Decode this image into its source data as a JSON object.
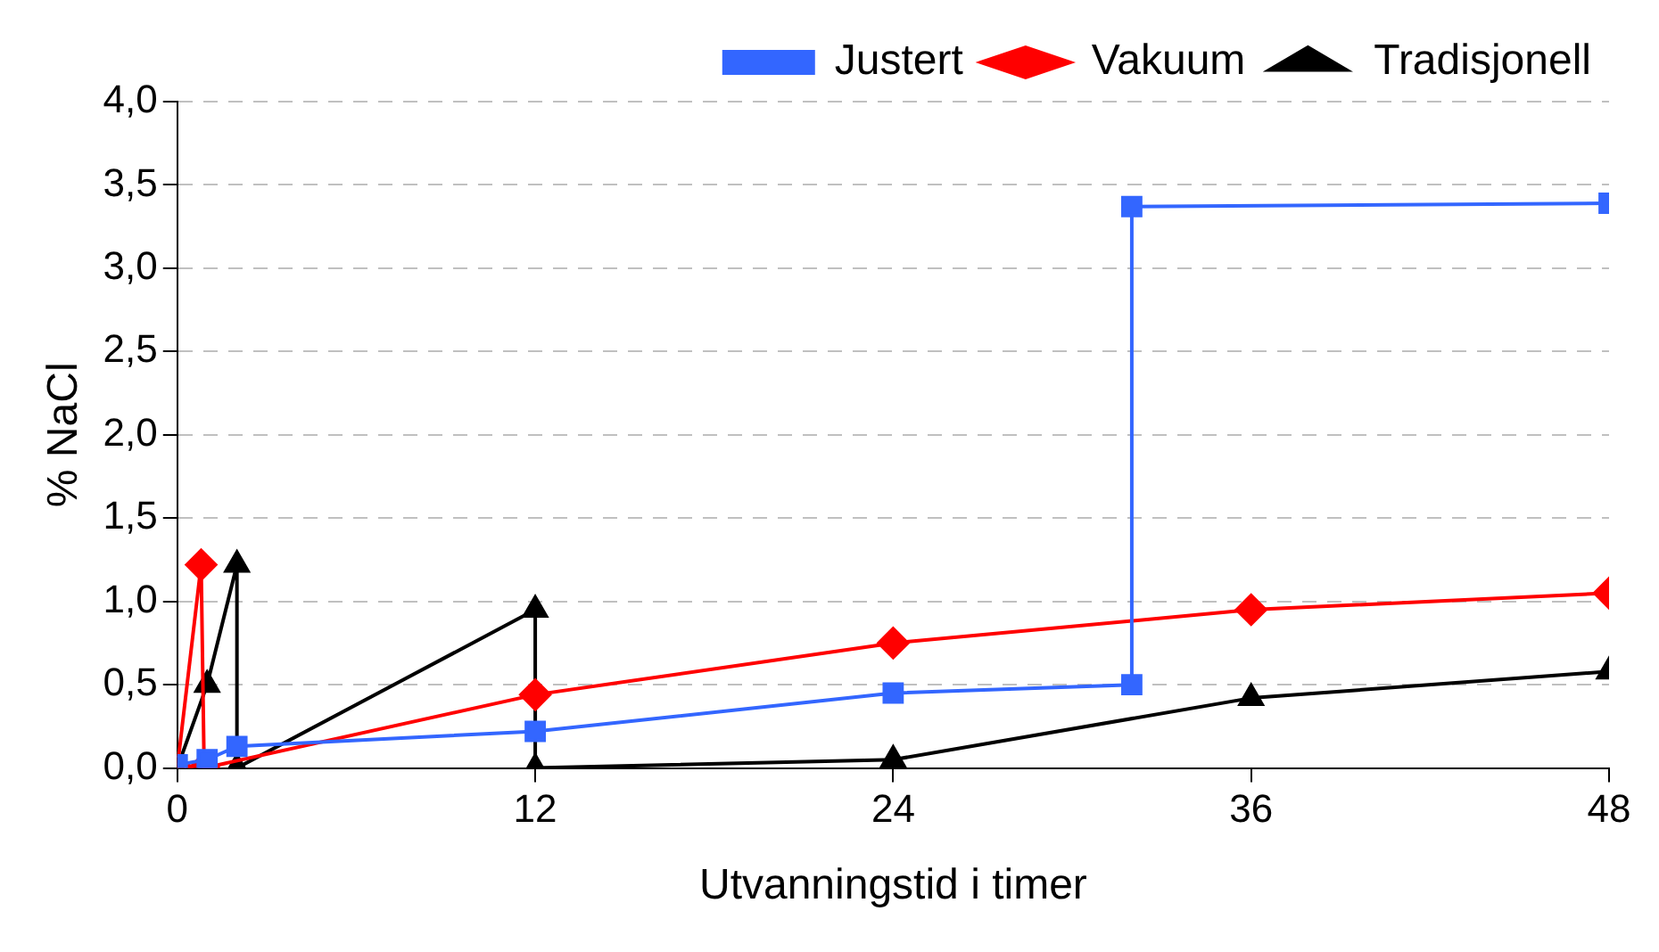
{
  "chart_data": {
    "type": "line",
    "xlabel": "Utvanningstid i timer",
    "ylabel": "% NaCl",
    "xlim": [
      0,
      48
    ],
    "xticks": [
      0,
      12,
      24,
      36,
      48
    ],
    "ylim": [
      0,
      4
    ],
    "yticks": [
      {
        "value": 0,
        "label": "0,0"
      },
      {
        "value": 0.5,
        "label": "0,5"
      },
      {
        "value": 1,
        "label": "1,0"
      },
      {
        "value": 1.5,
        "label": "1,5"
      },
      {
        "value": 2,
        "label": "2,0"
      },
      {
        "value": 2.5,
        "label": "2,5"
      },
      {
        "value": 3,
        "label": "3,0"
      },
      {
        "value": 3.5,
        "label": "3,5"
      },
      {
        "value": 4,
        "label": "4,0"
      }
    ],
    "grid": "y",
    "legend": "top right",
    "line_style": "solid",
    "series": [
      {
        "name": "Vakuum",
        "color": "#ff0000",
        "marker": "diamond",
        "x": [
          0,
          0.8,
          0.9,
          12,
          24,
          36,
          48
        ],
        "values": [
          0,
          1.22,
          0,
          0.44,
          0.75,
          0.95,
          1.05
        ]
      },
      {
        "name": "Justert",
        "color": "#3366ff",
        "marker": "square",
        "x": [
          0,
          1,
          2,
          12,
          24,
          32,
          32,
          48
        ],
        "values": [
          0.02,
          0.05,
          0.13,
          0.22,
          0.45,
          0.5,
          3.37,
          3.39
        ]
      },
      {
        "name": "Tradisjonell",
        "color": "#000000",
        "marker": "triangle",
        "x": [
          0,
          1,
          2,
          2,
          12,
          12,
          24,
          36,
          48
        ],
        "values": [
          0,
          0.5,
          1.22,
          0,
          0.95,
          0,
          0.05,
          0.42,
          0.58
        ]
      }
    ]
  }
}
